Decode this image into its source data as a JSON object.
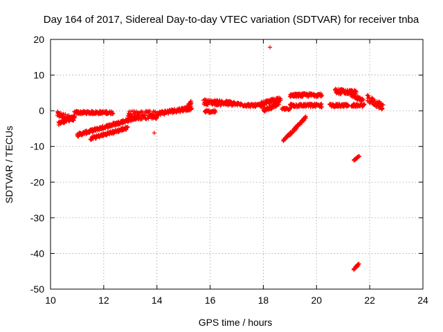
{
  "chart_data": {
    "type": "scatter",
    "title": "Day 164 of 2017, Sidereal Day-to-day VTEC variation (SDTVAR) for receiver tnba",
    "xlabel": "GPS time / hours",
    "ylabel": "SDTVAR / TECUs",
    "xlim": [
      10,
      24
    ],
    "ylim": [
      -50,
      20
    ],
    "xticks": [
      10,
      12,
      14,
      16,
      18,
      20,
      22,
      24
    ],
    "yticks": [
      -50,
      -40,
      -30,
      -20,
      -10,
      0,
      10,
      20
    ],
    "grid": true,
    "marker": "+",
    "color": "#ff0000",
    "segments": [
      {
        "x0": 10.25,
        "y0": -1.0,
        "x1": 10.9,
        "y1": -2.5,
        "spread": 1.6
      },
      {
        "x0": 10.3,
        "y0": -3.5,
        "x1": 10.9,
        "y1": -2.0,
        "spread": 1.0
      },
      {
        "x0": 10.9,
        "y0": -0.5,
        "x1": 12.35,
        "y1": -0.5,
        "spread": 0.9
      },
      {
        "x0": 11.0,
        "y0": -6.8,
        "x1": 13.3,
        "y1": -1.8,
        "spread": 1.0
      },
      {
        "x0": 11.5,
        "y0": -7.8,
        "x1": 12.9,
        "y1": -4.8,
        "spread": 0.9
      },
      {
        "x0": 12.9,
        "y0": -1.2,
        "x1": 14.0,
        "y1": -1.2,
        "spread": 2.4
      },
      {
        "x0": 14.0,
        "y0": -0.8,
        "x1": 15.3,
        "y1": 0.8,
        "spread": 1.2
      },
      {
        "x0": 15.1,
        "y0": 0.5,
        "x1": 15.3,
        "y1": 2.5,
        "spread": 1.2
      },
      {
        "x0": 15.75,
        "y0": 2.5,
        "x1": 16.9,
        "y1": 2.0,
        "spread": 1.5
      },
      {
        "x0": 15.8,
        "y0": -0.2,
        "x1": 16.2,
        "y1": -0.2,
        "spread": 0.8
      },
      {
        "x0": 16.8,
        "y0": 2.0,
        "x1": 17.5,
        "y1": 1.5,
        "spread": 0.9
      },
      {
        "x0": 17.5,
        "y0": 1.5,
        "x1": 18.0,
        "y1": 1.5,
        "spread": 0.9
      },
      {
        "x0": 17.9,
        "y0": 1.8,
        "x1": 18.65,
        "y1": 3.5,
        "spread": 1.2
      },
      {
        "x0": 18.0,
        "y0": 0.0,
        "x1": 18.6,
        "y1": 2.0,
        "spread": 1.0
      },
      {
        "x0": 18.7,
        "y0": 0.5,
        "x1": 19.0,
        "y1": 0.5,
        "spread": 0.6
      },
      {
        "x0": 19.0,
        "y0": 1.5,
        "x1": 20.2,
        "y1": 1.5,
        "spread": 1.0
      },
      {
        "x0": 19.0,
        "y0": 4.3,
        "x1": 20.2,
        "y1": 4.5,
        "spread": 1.0
      },
      {
        "x0": 18.75,
        "y0": -8.5,
        "x1": 19.6,
        "y1": -1.8,
        "spread": 0.8
      },
      {
        "x0": 20.5,
        "y0": 1.5,
        "x1": 21.2,
        "y1": 1.5,
        "spread": 0.9
      },
      {
        "x0": 20.7,
        "y0": 5.5,
        "x1": 21.5,
        "y1": 5.0,
        "spread": 1.5
      },
      {
        "x0": 21.3,
        "y0": 4.5,
        "x1": 21.75,
        "y1": 2.8,
        "spread": 1.0
      },
      {
        "x0": 21.3,
        "y0": 1.5,
        "x1": 21.8,
        "y1": 1.5,
        "spread": 0.8
      },
      {
        "x0": 21.9,
        "y0": 3.5,
        "x1": 22.5,
        "y1": 1.0,
        "spread": 2.0
      },
      {
        "x0": 21.4,
        "y0": -13.8,
        "x1": 21.6,
        "y1": -12.8,
        "spread": 0.5
      },
      {
        "x0": 21.4,
        "y0": -44.5,
        "x1": 21.6,
        "y1": -43.0,
        "spread": 0.6
      }
    ],
    "points": [
      {
        "x": 18.25,
        "y": 17.8
      },
      {
        "x": 13.9,
        "y": -6.2
      }
    ]
  }
}
